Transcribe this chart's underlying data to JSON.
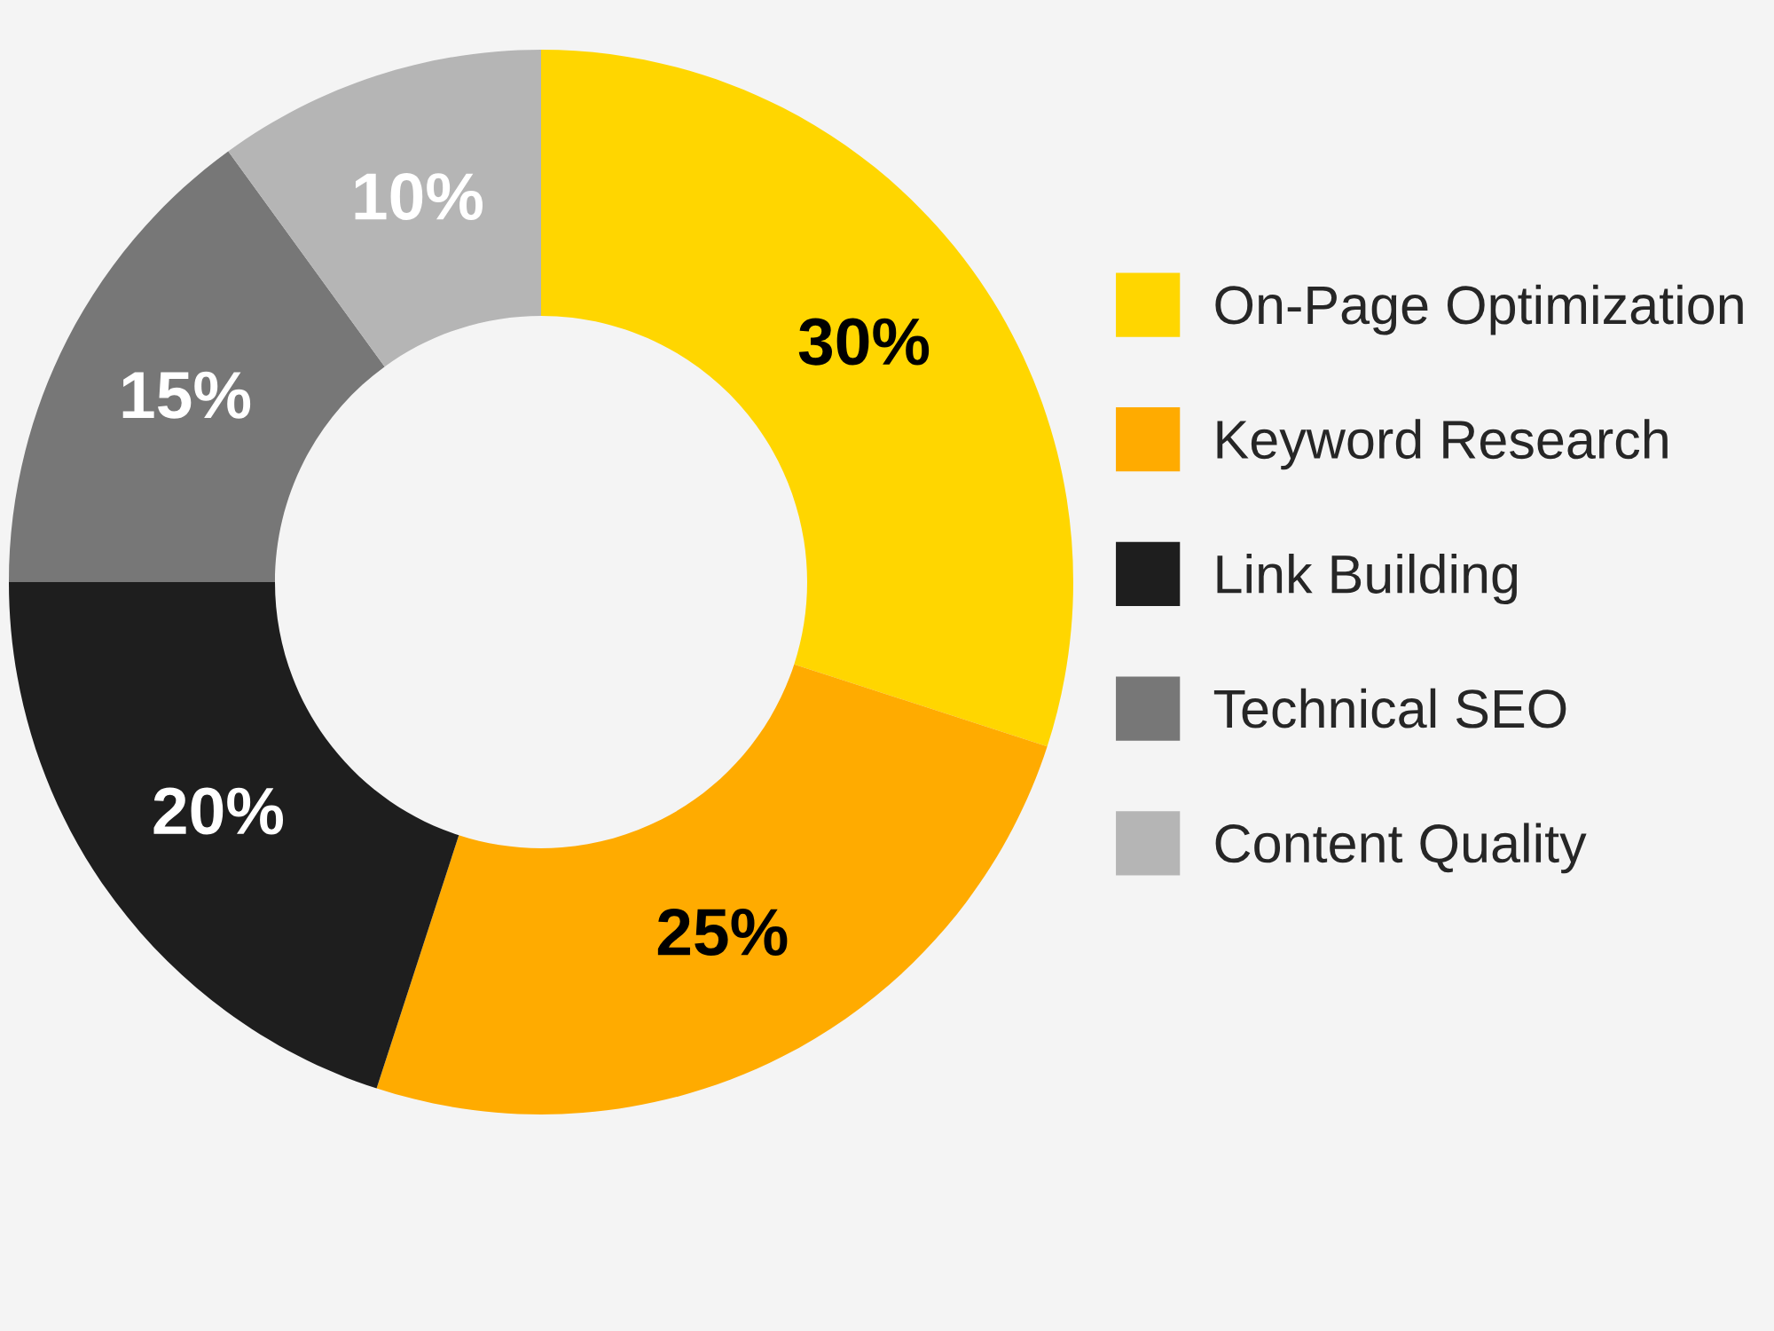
{
  "chart_data": {
    "type": "donut",
    "categories": [
      "On-Page Optimization",
      "Keyword Research",
      "Link Building",
      "Technical SEO",
      "Content Quality"
    ],
    "values": [
      30,
      25,
      20,
      15,
      10
    ],
    "colors": [
      "#ffd600",
      "#ffab00",
      "#1e1e1e",
      "#777777",
      "#b5b5b5"
    ],
    "value_labels": [
      "30%",
      "25%",
      "20%",
      "15%",
      "10%"
    ],
    "legend": "right"
  }
}
